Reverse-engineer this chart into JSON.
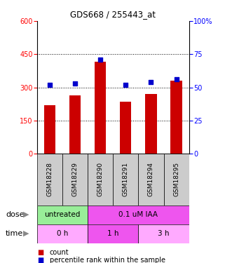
{
  "title": "GDS668 / 255443_at",
  "samples": [
    "GSM18228",
    "GSM18229",
    "GSM18290",
    "GSM18291",
    "GSM18294",
    "GSM18295"
  ],
  "counts": [
    220,
    265,
    415,
    235,
    270,
    330
  ],
  "percentiles": [
    52,
    53,
    71,
    52,
    54,
    56
  ],
  "left_ylim": [
    0,
    600
  ],
  "right_ylim": [
    0,
    100
  ],
  "left_yticks": [
    0,
    150,
    300,
    450,
    600
  ],
  "right_yticks": [
    0,
    25,
    50,
    75,
    100
  ],
  "right_yticklabels": [
    "0",
    "25",
    "50",
    "75",
    "100%"
  ],
  "bar_color": "#cc0000",
  "dot_color": "#0000cc",
  "dose_labels": [
    {
      "label": "untreated",
      "start": 0,
      "end": 2,
      "color": "#99ee99"
    },
    {
      "label": "0.1 uM IAA",
      "start": 2,
      "end": 6,
      "color": "#ee55ee"
    }
  ],
  "time_labels": [
    {
      "label": "0 h",
      "start": 0,
      "end": 2,
      "color": "#ffaaff"
    },
    {
      "label": "1 h",
      "start": 2,
      "end": 4,
      "color": "#ee55ee"
    },
    {
      "label": "3 h",
      "start": 4,
      "end": 6,
      "color": "#ffaaff"
    }
  ],
  "dose_row_label": "dose",
  "time_row_label": "time",
  "legend_count_label": "count",
  "legend_pct_label": "percentile rank within the sample",
  "bg_color": "#ffffff",
  "sample_bg_color": "#cccccc"
}
